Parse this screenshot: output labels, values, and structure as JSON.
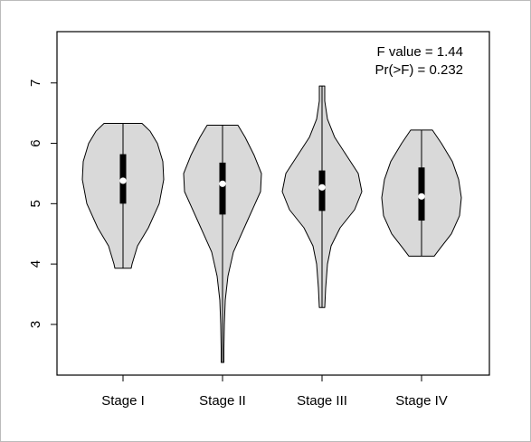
{
  "chart_data": {
    "type": "violin",
    "categories": [
      "Stage I",
      "Stage II",
      "Stage III",
      "Stage IV"
    ],
    "annotations": [
      "F value = 1.44",
      "Pr(>F) = 0.232"
    ],
    "ylim": [
      2.16,
      7.85
    ],
    "yticks": [
      3,
      4,
      5,
      6,
      7
    ],
    "fill": "#d9d9d9",
    "box_color": "#000000",
    "median_color": "#ffffff",
    "violins": [
      {
        "min": 3.93,
        "q1": 5.0,
        "median": 5.38,
        "q3": 5.82,
        "max": 6.33,
        "density": [
          [
            6.33,
            21
          ],
          [
            6.2,
            30
          ],
          [
            6.0,
            38
          ],
          [
            5.7,
            44
          ],
          [
            5.4,
            45
          ],
          [
            5.0,
            40
          ],
          [
            4.6,
            28
          ],
          [
            4.3,
            16
          ],
          [
            4.0,
            10
          ],
          [
            3.93,
            9
          ]
        ]
      },
      {
        "min": 2.37,
        "q1": 4.82,
        "median": 5.33,
        "q3": 5.68,
        "max": 6.3,
        "density": [
          [
            6.3,
            17
          ],
          [
            6.1,
            25
          ],
          [
            5.8,
            35
          ],
          [
            5.5,
            43
          ],
          [
            5.2,
            42
          ],
          [
            5.0,
            36
          ],
          [
            4.6,
            24
          ],
          [
            4.2,
            12
          ],
          [
            3.8,
            6
          ],
          [
            3.4,
            3
          ],
          [
            3.0,
            2
          ],
          [
            2.6,
            1.5
          ],
          [
            2.37,
            1.5
          ]
        ]
      },
      {
        "min": 3.28,
        "q1": 4.88,
        "median": 5.27,
        "q3": 5.55,
        "max": 6.95,
        "density": [
          [
            6.95,
            3
          ],
          [
            6.7,
            3
          ],
          [
            6.4,
            6
          ],
          [
            6.1,
            14
          ],
          [
            5.8,
            27
          ],
          [
            5.5,
            40
          ],
          [
            5.2,
            44
          ],
          [
            4.9,
            36
          ],
          [
            4.6,
            20
          ],
          [
            4.3,
            10
          ],
          [
            4.0,
            6
          ],
          [
            3.6,
            4
          ],
          [
            3.28,
            3
          ]
        ]
      },
      {
        "min": 4.13,
        "q1": 4.72,
        "median": 5.12,
        "q3": 5.6,
        "max": 6.22,
        "density": [
          [
            6.22,
            12
          ],
          [
            6.0,
            22
          ],
          [
            5.7,
            34
          ],
          [
            5.4,
            41
          ],
          [
            5.1,
            44
          ],
          [
            4.8,
            42
          ],
          [
            4.5,
            33
          ],
          [
            4.25,
            20
          ],
          [
            4.13,
            14
          ]
        ]
      }
    ]
  }
}
